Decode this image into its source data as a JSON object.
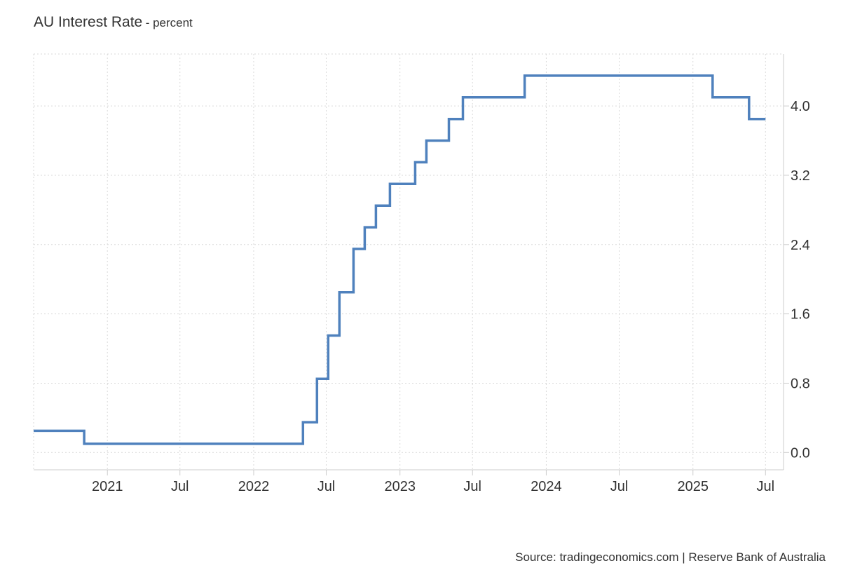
{
  "header": {
    "title": "AU Interest Rate",
    "subtitle": "- percent"
  },
  "footer": {
    "source": "Source: tradingeconomics.com | Reserve Bank of Australia"
  },
  "colors": {
    "line": "#4f81bd",
    "grid": "#d9d9d9",
    "axis": "#cccccc",
    "text": "#333333"
  },
  "chart_data": {
    "type": "line",
    "step": true,
    "title": "AU Interest Rate",
    "subtitle": "- percent",
    "xlabel": "",
    "ylabel": "",
    "x_range": [
      "2020-07-01",
      "2025-08-15"
    ],
    "ylim": [
      -0.2,
      4.6
    ],
    "grid": true,
    "y_axis_side": "right",
    "y_ticks": [
      "0.0",
      "0.8",
      "1.6",
      "2.4",
      "3.2",
      "4.0"
    ],
    "x_ticks": [
      {
        "date": "2021-01-01",
        "label": "2021"
      },
      {
        "date": "2021-07-01",
        "label": "Jul"
      },
      {
        "date": "2022-01-01",
        "label": "2022"
      },
      {
        "date": "2022-07-01",
        "label": "Jul"
      },
      {
        "date": "2023-01-01",
        "label": "2023"
      },
      {
        "date": "2023-07-01",
        "label": "Jul"
      },
      {
        "date": "2024-01-01",
        "label": "2024"
      },
      {
        "date": "2024-07-01",
        "label": "Jul"
      },
      {
        "date": "2025-01-01",
        "label": "2025"
      },
      {
        "date": "2025-07-01",
        "label": "Jul"
      }
    ],
    "series": [
      {
        "points": [
          {
            "x": "2020-07-01",
            "y": 0.25
          },
          {
            "x": "2020-11-04",
            "y": 0.1
          },
          {
            "x": "2022-05-04",
            "y": 0.35
          },
          {
            "x": "2022-06-08",
            "y": 0.85
          },
          {
            "x": "2022-07-06",
            "y": 1.35
          },
          {
            "x": "2022-08-03",
            "y": 1.85
          },
          {
            "x": "2022-09-07",
            "y": 2.35
          },
          {
            "x": "2022-10-05",
            "y": 2.6
          },
          {
            "x": "2022-11-02",
            "y": 2.85
          },
          {
            "x": "2022-12-07",
            "y": 3.1
          },
          {
            "x": "2023-02-08",
            "y": 3.35
          },
          {
            "x": "2023-03-08",
            "y": 3.6
          },
          {
            "x": "2023-05-03",
            "y": 3.85
          },
          {
            "x": "2023-06-07",
            "y": 4.1
          },
          {
            "x": "2023-11-08",
            "y": 4.35
          },
          {
            "x": "2025-02-19",
            "y": 4.1
          },
          {
            "x": "2025-05-21",
            "y": 3.85
          },
          {
            "x": "2025-07-01",
            "y": 3.85
          }
        ]
      }
    ]
  }
}
